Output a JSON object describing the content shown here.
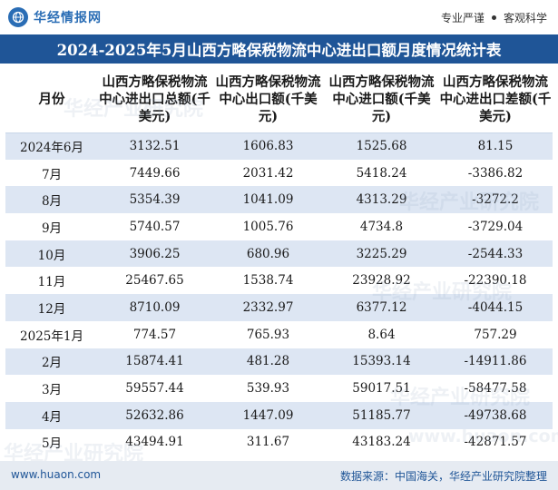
{
  "header": {
    "logo_text": "华经情报网",
    "tagline_left": "专业严谨",
    "tagline_right": "客观科学",
    "logo_icon": "globe-icon"
  },
  "title": "2024-2025年5月山西方略保税物流中心进出口额月度情况统计表",
  "table": {
    "columns": [
      "月份",
      "山西方略保税物流中心进出口总额(千美元)",
      "山西方略保税物流中心出口额(千美元)",
      "山西方略保税物流中心进口额(千美元)",
      "山西方略保税物流中心进出口差额(千美元)"
    ],
    "rows": [
      [
        "2024年6月",
        "3132.51",
        "1606.83",
        "1525.68",
        "81.15"
      ],
      [
        "7月",
        "7449.66",
        "2031.42",
        "5418.24",
        "-3386.82"
      ],
      [
        "8月",
        "5354.39",
        "1041.09",
        "4313.29",
        "-3272.2"
      ],
      [
        "9月",
        "5740.57",
        "1005.76",
        "4734.8",
        "-3729.04"
      ],
      [
        "10月",
        "3906.25",
        "680.96",
        "3225.29",
        "-2544.33"
      ],
      [
        "11月",
        "25467.65",
        "1538.74",
        "23928.92",
        "-22390.18"
      ],
      [
        "12月",
        "8710.09",
        "2332.97",
        "6377.12",
        "-4044.15"
      ],
      [
        "2025年1月",
        "774.57",
        "765.93",
        "8.64",
        "757.29"
      ],
      [
        "2月",
        "15874.41",
        "481.28",
        "15393.14",
        "-14911.86"
      ],
      [
        "3月",
        "59557.44",
        "539.93",
        "59017.51",
        "-58477.58"
      ],
      [
        "4月",
        "52632.86",
        "1447.09",
        "51185.77",
        "-49738.68"
      ],
      [
        "5月",
        "43494.91",
        "311.67",
        "43183.24",
        "-42871.57"
      ]
    ]
  },
  "watermark": {
    "text": "华经产业研究院",
    "url_text": "www.huaon.com"
  },
  "footer": {
    "site": "www.huaon.com",
    "source": "数据来源：中国海关，华经产业研究院整理"
  },
  "colors": {
    "brand_blue": "#1f5597",
    "stripe": "#dde6f3",
    "footer_bg": "#e6ebf2"
  }
}
